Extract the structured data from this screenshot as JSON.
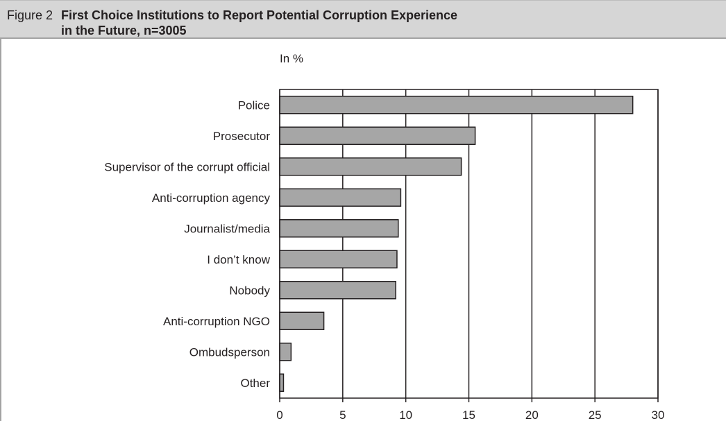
{
  "figure": {
    "label": "Figure 2",
    "title_line1": "First Choice Institutions to Report Potential Corruption Experience",
    "title_line2": "in the Future, n=3005"
  },
  "chart_data": {
    "type": "bar",
    "orientation": "horizontal",
    "unit_label": "In %",
    "categories": [
      "Police",
      "Prosecutor",
      "Supervisor of the corrupt official",
      "Anti-corruption agency",
      "Journalist/media",
      "I don’t know",
      "Nobody",
      "Anti-corruption NGO",
      "Ombudsperson",
      "Other"
    ],
    "values": [
      28.0,
      15.5,
      14.4,
      9.6,
      9.4,
      9.3,
      9.2,
      3.5,
      0.9,
      0.3
    ],
    "xlim": [
      0,
      30
    ],
    "xticks": [
      0,
      5,
      10,
      15,
      20,
      25,
      30
    ],
    "grid": true,
    "bar_color": "#a6a6a6",
    "bar_edge_color": "#231f20"
  }
}
